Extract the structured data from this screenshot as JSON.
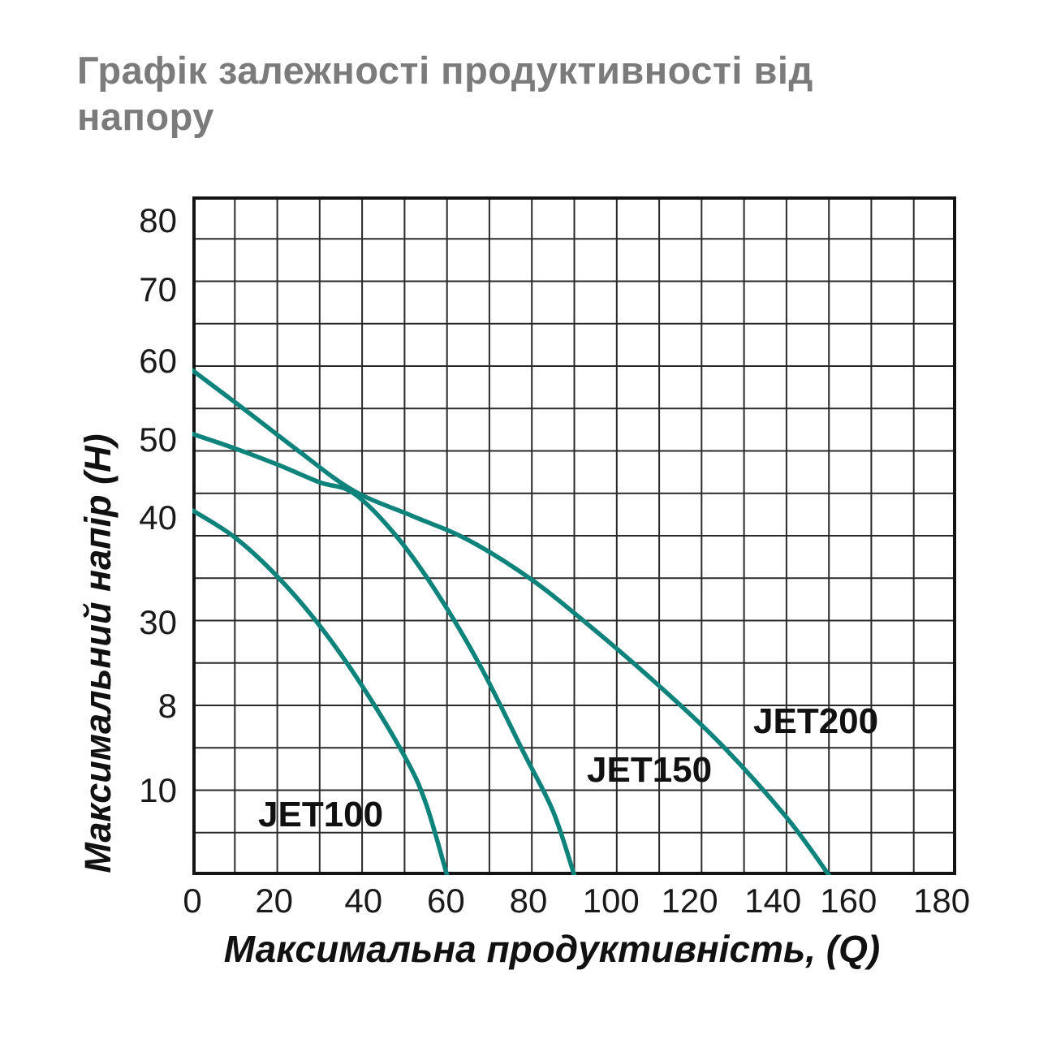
{
  "title": "Графік залежності продуктивності від напору",
  "colors": {
    "background": "#ffffff",
    "title_text": "#7b7b7b",
    "axis_text": "#1a1a1a",
    "grid_line": "#2a2a2a",
    "plot_border": "#141414",
    "curve": "#0e837b"
  },
  "chart_data": {
    "type": "line",
    "title": "Графік залежності продуктивності від напору",
    "xlabel": "Максимальна продуктивність, (Q)",
    "ylabel": "Максимальний напір (H)",
    "xlim": [
      0,
      180
    ],
    "ylim": [
      0,
      80
    ],
    "grid": true,
    "grid_cells": {
      "cols": 18,
      "rows": 16
    },
    "legend": "inline-curve-labels",
    "xticks": [
      "0",
      "20",
      "40",
      "60",
      "80",
      "100",
      "120",
      "140",
      "160",
      "180"
    ],
    "yticks": [
      "80",
      "70",
      "60",
      "50",
      "40",
      "30",
      "8",
      "10"
    ],
    "series": [
      {
        "name": "JET100",
        "points": [
          [
            0,
            43
          ],
          [
            10,
            39.8
          ],
          [
            20,
            35.2
          ],
          [
            30,
            29.4
          ],
          [
            40,
            22.3
          ],
          [
            50,
            14
          ],
          [
            55,
            8.5
          ],
          [
            60,
            0
          ]
        ]
      },
      {
        "name": "JET150",
        "points": [
          [
            0,
            52
          ],
          [
            10,
            50.3
          ],
          [
            20,
            48.4
          ],
          [
            30,
            46.3
          ],
          [
            38,
            45
          ],
          [
            48,
            40
          ],
          [
            58,
            33
          ],
          [
            68,
            24.5
          ],
          [
            78,
            14.5
          ],
          [
            85,
            7.5
          ],
          [
            90,
            0
          ]
        ]
      },
      {
        "name": "JET200",
        "points": [
          [
            0,
            59.5
          ],
          [
            12,
            55
          ],
          [
            25,
            50
          ],
          [
            38,
            45.3
          ],
          [
            52,
            42.3
          ],
          [
            65,
            39.5
          ],
          [
            80,
            34.8
          ],
          [
            95,
            28.8
          ],
          [
            110,
            22.3
          ],
          [
            125,
            15.2
          ],
          [
            140,
            6.8
          ],
          [
            150,
            0
          ]
        ]
      }
    ]
  }
}
